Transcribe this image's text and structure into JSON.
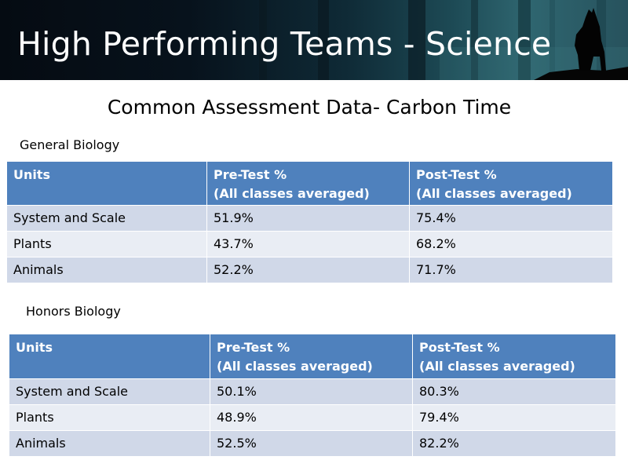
{
  "banner": {
    "title": "High Performing Teams - Science"
  },
  "subtitle": "Common Assessment Data- Carbon Time",
  "tables": [
    {
      "label": "General Biology",
      "headers": {
        "units": "Units",
        "pre_line1": "Pre-Test %",
        "pre_line2": "(All classes averaged)",
        "post_line1": "Post-Test %",
        "post_line2": "(All classes averaged)"
      },
      "rows": [
        {
          "unit": "System and Scale",
          "pre": "51.9%",
          "post": "75.4%"
        },
        {
          "unit": "Plants",
          "pre": "43.7%",
          "post": "68.2%"
        },
        {
          "unit": "Animals",
          "pre": "52.2%",
          "post": "71.7%"
        }
      ]
    },
    {
      "label": "Honors Biology",
      "headers": {
        "units": "Units",
        "pre_line1": "Pre-Test %",
        "pre_line2": "(All classes averaged)",
        "post_line1": "Post-Test %",
        "post_line2": "(All classes averaged)"
      },
      "rows": [
        {
          "unit": "System and Scale",
          "pre": "50.1%",
          "post": "80.3%"
        },
        {
          "unit": "Plants",
          "pre": "48.9%",
          "post": "79.4%"
        },
        {
          "unit": "Animals",
          "pre": "52.5%",
          "post": "82.2%"
        }
      ]
    }
  ],
  "colors": {
    "header_fill": "#4f81bd",
    "row_dark": "#d0d8e8",
    "row_light": "#e9edf4"
  }
}
